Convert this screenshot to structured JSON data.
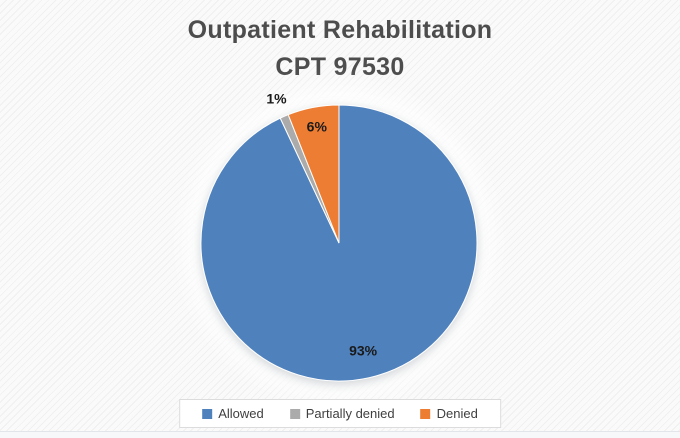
{
  "chart": {
    "title_line1": "Outpatient Rehabilitation",
    "title_line2": "CPT 97530"
  },
  "chart_data": {
    "type": "pie",
    "title": "Outpatient Rehabilitation CPT 97530",
    "categories": [
      "Allowed",
      "Partially denied",
      "Denied"
    ],
    "values": [
      93,
      1,
      6
    ],
    "unit": "%",
    "data_labels": [
      "93%",
      "1%",
      "6%"
    ],
    "label_positions": [
      "inside",
      "outside",
      "inside"
    ],
    "colors": [
      "#4f81bd",
      "#ababab",
      "#ed7d31"
    ],
    "start_angle_deg": 0,
    "direction": "clockwise",
    "legend_position": "bottom",
    "label_color": "#1a1a1a",
    "title_color": "#4d4d4d"
  }
}
